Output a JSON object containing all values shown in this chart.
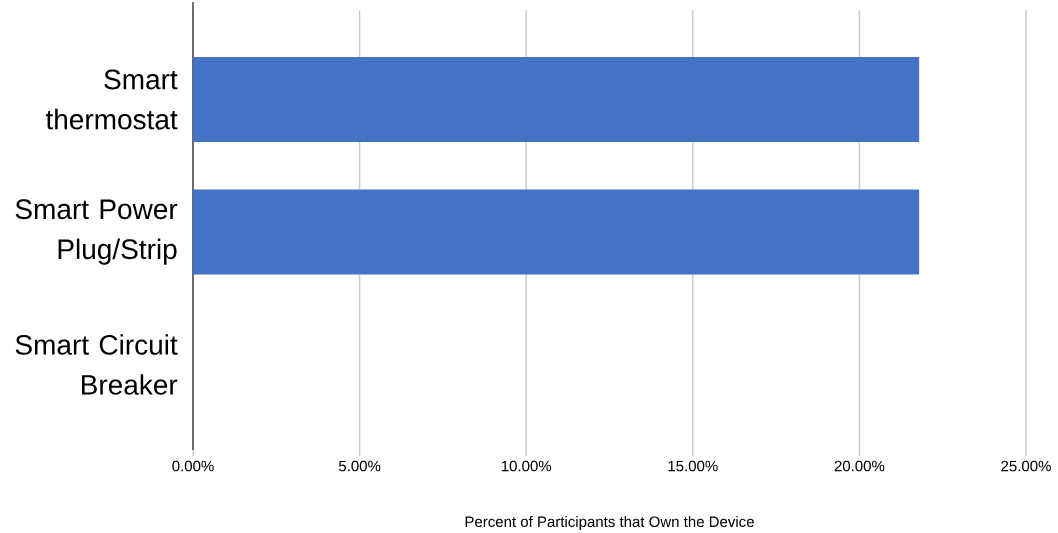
{
  "chart_data": {
    "type": "bar",
    "orientation": "horizontal",
    "categories": [
      "Smart thermostat",
      "Smart Power Plug/Strip",
      "Smart Circuit Breaker"
    ],
    "values": [
      21.8,
      21.8,
      0
    ],
    "color": "#4472c4",
    "xlabel": "Percent of Participants that Own the Device",
    "xlim": [
      0,
      25
    ],
    "xticks": [
      {
        "value": 0,
        "label": "0.00%"
      },
      {
        "value": 5,
        "label": "5.00%"
      },
      {
        "value": 10,
        "label": "10.00%"
      },
      {
        "value": 15,
        "label": "15.00%"
      },
      {
        "value": 20,
        "label": "20.00%"
      },
      {
        "value": 25,
        "label": "25.00%"
      }
    ],
    "grid": "x"
  }
}
